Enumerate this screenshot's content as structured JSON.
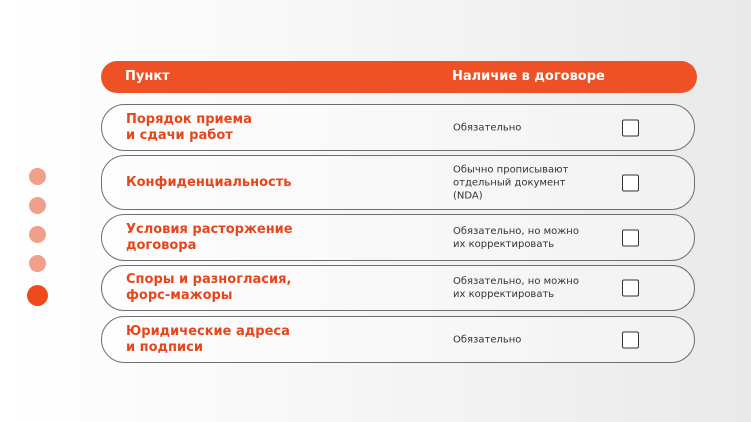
{
  "header": {
    "col1": "Пункт",
    "col2": "Наличие в договоре"
  },
  "rows": [
    {
      "name": "Порядок приема\nи сдачи работ",
      "requirement": "Обязательно",
      "checked": false
    },
    {
      "name": "Конфиденциальность",
      "requirement": "Обычно прописывают\nотдельный документ\n(NDA)",
      "checked": false
    },
    {
      "name": "Условия расторжение\nдоговора",
      "requirement": "Обязательно, но можно\nих корректировать",
      "checked": false
    },
    {
      "name": "Споры и разногласия,\nфорс-мажоры",
      "requirement": "Обязательно, но можно\nих корректировать",
      "checked": false
    },
    {
      "name": "Юридические адреса\nи подписи",
      "requirement": "Обязательно",
      "checked": false
    }
  ],
  "pagination": {
    "total": 5,
    "active": 5
  },
  "colors": {
    "accent": "#ee5125",
    "dot_inactive": "#f0a08a"
  }
}
